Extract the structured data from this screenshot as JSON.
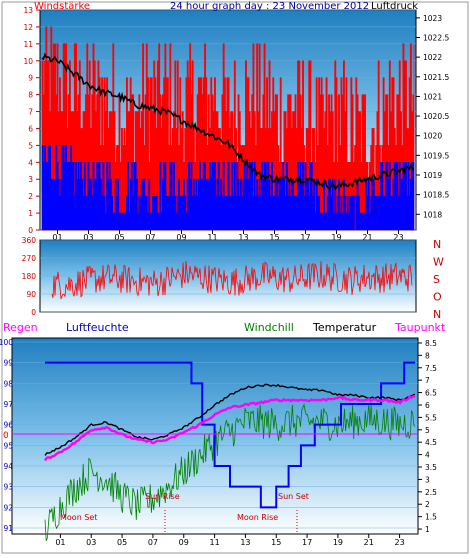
{
  "chart_data": [
    {
      "type": "line",
      "title": "24 hour graph day : 23 November 2012",
      "left_axis_label": "Windstärke",
      "right_axis_label": "Luftdruck",
      "left_ticks": [
        "0",
        "1",
        "2",
        "3",
        "4",
        "5",
        "6",
        "7",
        "8",
        "9",
        "10",
        "11",
        "12",
        "13"
      ],
      "right_ticks": [
        "1018",
        "1018.5",
        "1019",
        "1019.5",
        "1020",
        "1020.5",
        "1021",
        "1021.5",
        "1022",
        "1022.5",
        "1023"
      ],
      "x_ticks": [
        "01",
        "03",
        "05",
        "07",
        "09",
        "11",
        "13",
        "15",
        "17",
        "19",
        "21",
        "23"
      ],
      "ylim_left": [
        0,
        13
      ],
      "ylim_right": [
        1017.6,
        1023.2
      ],
      "series": [
        {
          "key": "gust",
          "color": "#ff0000",
          "kind": "step-area",
          "x": [
            0,
            1,
            2,
            3,
            4,
            5,
            6,
            7,
            8,
            9,
            10,
            11,
            12,
            13,
            14,
            15,
            16,
            17,
            18,
            19,
            20,
            21,
            22,
            23,
            24
          ],
          "values": [
            9,
            9,
            8,
            8,
            8,
            7,
            7,
            8,
            8,
            7,
            8,
            8,
            7,
            8,
            8,
            7,
            7,
            7,
            6,
            7,
            6,
            6,
            7,
            8,
            8
          ]
        },
        {
          "key": "wind",
          "color": "#0000ff",
          "kind": "step-area",
          "x": [
            0,
            1,
            2,
            3,
            4,
            5,
            6,
            7,
            8,
            9,
            10,
            11,
            12,
            13,
            14,
            15,
            16,
            17,
            18,
            19,
            20,
            21,
            22,
            23,
            24
          ],
          "values": [
            4,
            4,
            3,
            3,
            3,
            2,
            3,
            2,
            3,
            2,
            3,
            3,
            3,
            3,
            3,
            3,
            3,
            3,
            2,
            2,
            1,
            2,
            3,
            3,
            3
          ]
        },
        {
          "key": "pressure",
          "color": "#000000",
          "kind": "line",
          "axis": "right",
          "x": [
            0,
            1,
            2,
            3,
            4,
            5,
            6,
            7,
            8,
            9,
            10,
            11,
            12,
            13,
            14,
            15,
            16,
            17,
            18,
            19,
            20,
            21,
            22,
            23,
            24
          ],
          "values": [
            1022.0,
            1021.9,
            1021.6,
            1021.3,
            1021.1,
            1021.0,
            1020.8,
            1020.7,
            1020.6,
            1020.4,
            1020.2,
            1020.0,
            1019.8,
            1019.4,
            1019.0,
            1018.9,
            1018.9,
            1018.9,
            1018.8,
            1018.7,
            1018.8,
            1018.9,
            1019.0,
            1019.1,
            1019.2
          ]
        }
      ]
    },
    {
      "type": "line",
      "left_ticks": [
        "0",
        "90",
        "180",
        "270",
        "360"
      ],
      "right_labels": [
        "N",
        "W",
        "S",
        "O",
        "N"
      ],
      "ylim": [
        0,
        360
      ],
      "series": [
        {
          "key": "direction",
          "color": "#ff0000",
          "x": [
            0,
            1,
            2,
            3,
            4,
            5,
            6,
            7,
            8,
            9,
            10,
            11,
            12,
            13,
            14,
            15,
            16,
            17,
            18,
            19,
            20,
            21,
            22,
            23,
            24
          ],
          "values": [
            140,
            135,
            150,
            165,
            170,
            160,
            150,
            145,
            170,
            190,
            175,
            160,
            150,
            165,
            180,
            170,
            160,
            175,
            185,
            170,
            160,
            175,
            170,
            180,
            170
          ]
        }
      ]
    },
    {
      "type": "line",
      "legend": [
        "Regen",
        "Luftfeuchte",
        "Windchill",
        "Temperatur",
        "Taupunkt"
      ],
      "left_ticks": [
        "91",
        "92",
        "93",
        "94",
        "95",
        "96",
        "97",
        "98",
        "99",
        "100"
      ],
      "right_ticks": [
        "1",
        "1.5",
        "2",
        "2.5",
        "3",
        "3.5",
        "4",
        "4.5",
        "5",
        "5.5",
        "6",
        "6.5",
        "7",
        "7.5",
        "8",
        "8.5"
      ],
      "rain_zero_label": "0",
      "x_ticks": [
        "01",
        "03",
        "05",
        "07",
        "09",
        "11",
        "13",
        "15",
        "17",
        "19",
        "21",
        "23"
      ],
      "ylim_left": [
        91,
        100
      ],
      "ylim_right": [
        0.8,
        8.7
      ],
      "annotations": [
        "Moon Set",
        "Sun Rise",
        "Moon Rise",
        "Sun Set"
      ],
      "series": [
        {
          "key": "humidity",
          "color": "#0000ff",
          "axis": "left",
          "x": [
            0,
            3,
            6,
            8.6,
            9.5,
            10.2,
            11,
            12,
            13,
            14,
            15,
            15.8,
            16.6,
            17.5,
            18.3,
            19.2,
            20,
            21,
            21.8,
            22.6,
            23.3,
            24
          ],
          "values": [
            99,
            99,
            99,
            99,
            98,
            96,
            94,
            93,
            93,
            92,
            93,
            94,
            95,
            96,
            96,
            97,
            97,
            97,
            98,
            98,
            99,
            99
          ]
        },
        {
          "key": "temperature",
          "color": "#000000",
          "axis": "right",
          "x": [
            0,
            1,
            2,
            3,
            4,
            5,
            6,
            7,
            8,
            9,
            10,
            11,
            12,
            13,
            14,
            15,
            16,
            17,
            18,
            19,
            20,
            21,
            22,
            23,
            24
          ],
          "values": [
            4.0,
            4.3,
            4.7,
            5.2,
            5.3,
            5.0,
            4.7,
            4.6,
            4.8,
            5.1,
            5.5,
            6.0,
            6.4,
            6.7,
            6.8,
            6.8,
            6.7,
            6.6,
            6.6,
            6.4,
            6.4,
            6.3,
            6.3,
            6.2,
            6.4
          ]
        },
        {
          "key": "dewpoint",
          "color": "#ff00ff",
          "axis": "right",
          "x": [
            0,
            1,
            2,
            3,
            4,
            5,
            6,
            7,
            8,
            9,
            10,
            11,
            12,
            13,
            14,
            15,
            16,
            17,
            18,
            19,
            20,
            21,
            22,
            23,
            24
          ],
          "values": [
            3.8,
            4.1,
            4.5,
            5.0,
            5.1,
            4.8,
            4.6,
            4.5,
            4.6,
            4.9,
            5.2,
            5.6,
            5.9,
            6.0,
            6.1,
            6.2,
            6.2,
            6.2,
            6.2,
            6.3,
            6.2,
            6.2,
            6.2,
            6.1,
            6.4
          ]
        },
        {
          "key": "windchill",
          "color": "#008000",
          "axis": "right",
          "x": [
            0,
            1,
            2,
            3,
            4,
            5,
            6,
            7,
            8,
            9,
            10,
            11,
            12,
            13,
            14,
            15,
            16,
            17,
            18,
            19,
            20,
            21,
            22,
            23,
            24
          ],
          "values": [
            1.2,
            2.2,
            3.0,
            3.6,
            3.3,
            2.6,
            2.2,
            2.5,
            3.0,
            3.6,
            4.2,
            4.8,
            5.2,
            5.6,
            5.6,
            5.5,
            5.6,
            5.6,
            5.6,
            5.5,
            5.6,
            5.7,
            5.6,
            5.5,
            5.6
          ]
        },
        {
          "key": "rain",
          "color": "#ff0000",
          "axis": "rain",
          "x": [
            0,
            24
          ],
          "values": [
            0,
            0
          ]
        }
      ]
    }
  ]
}
